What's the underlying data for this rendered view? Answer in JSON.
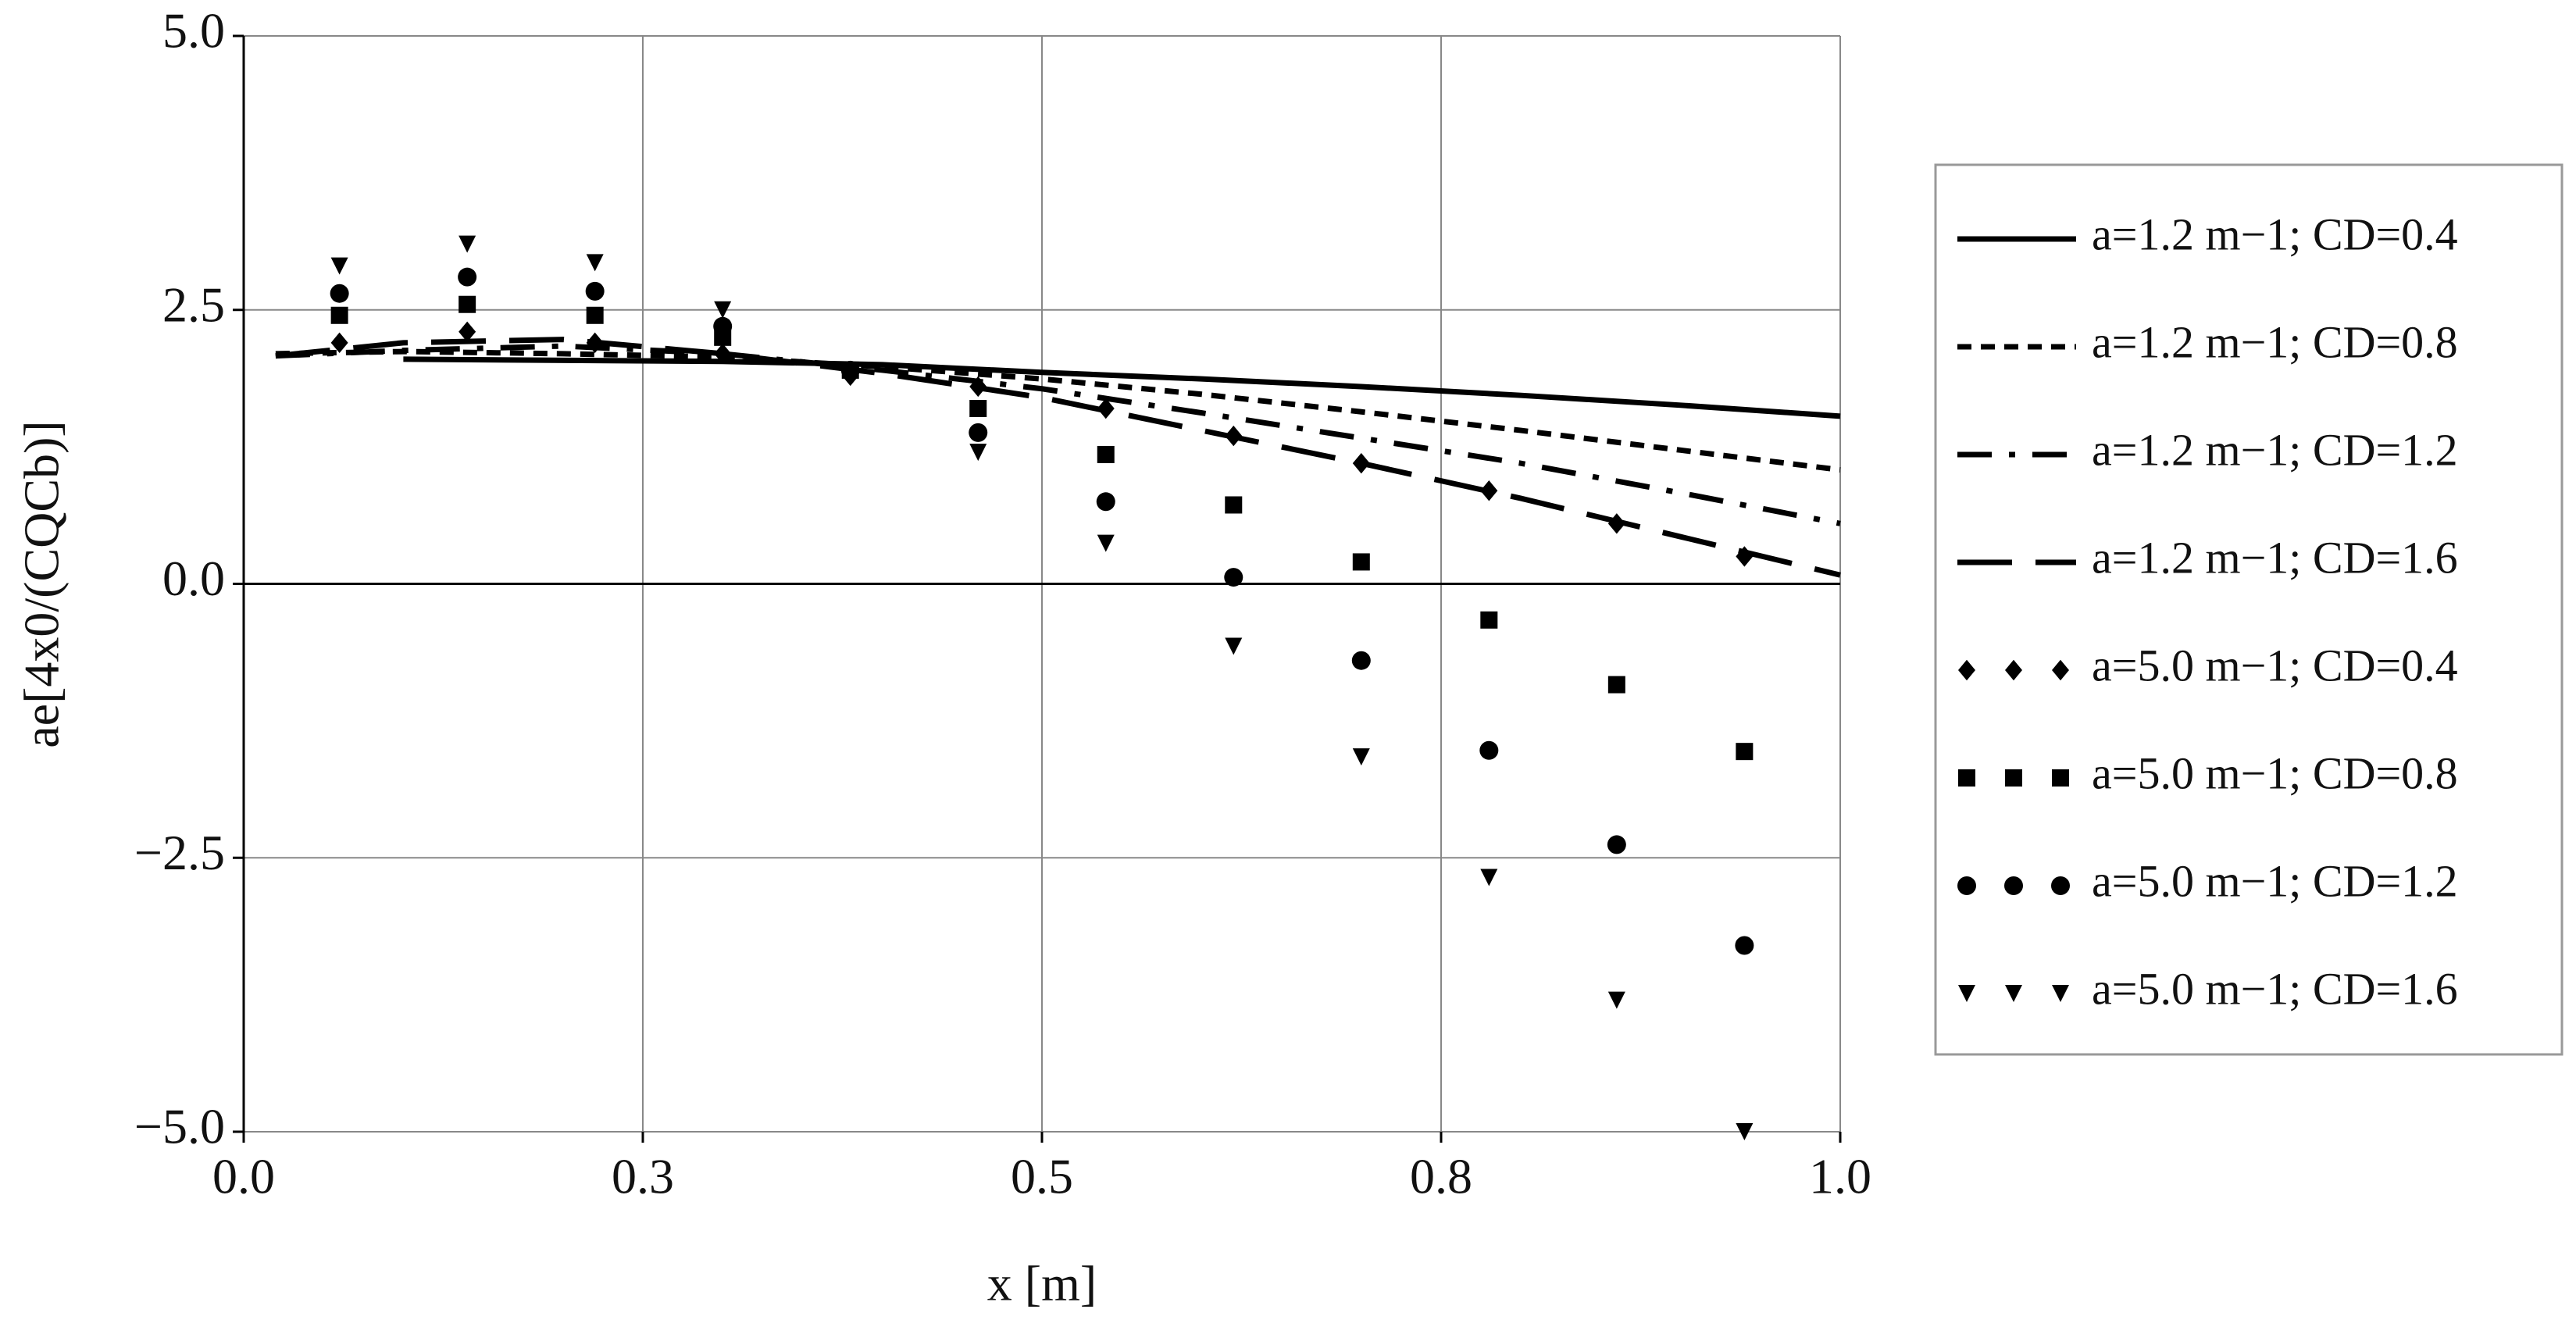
{
  "chart_data": {
    "type": "line",
    "x_label": "x [m]",
    "y_label": "ae[4x0/(CQCb)]",
    "xlim": [
      0,
      1
    ],
    "ylim": [
      -5,
      5
    ],
    "xticks": [
      {
        "value": 0,
        "label": "0.0"
      },
      {
        "value": 0.25,
        "label": "0.3"
      },
      {
        "value": 0.5,
        "label": "0.5"
      },
      {
        "value": 0.75,
        "label": "0.8"
      },
      {
        "value": 1,
        "label": "1.0"
      }
    ],
    "yticks": [
      {
        "value": -5,
        "label": "−5.0"
      },
      {
        "value": -2.5,
        "label": "−2.5"
      },
      {
        "value": 0,
        "label": "0.0"
      },
      {
        "value": 2.5,
        "label": "2.5"
      },
      {
        "value": 5,
        "label": "5.0"
      }
    ],
    "grid": true,
    "legend": "right",
    "series": [
      {
        "name": "a=1.2 m−1; CD=0.4",
        "color": "#000000",
        "mark": "line",
        "dash": "solid",
        "x": [
          0.1,
          0.3,
          0.4,
          0.5,
          0.6,
          0.7,
          0.8,
          0.9,
          1.0
        ],
        "values": [
          2.05,
          2.03,
          2.0,
          1.93,
          1.87,
          1.8,
          1.72,
          1.63,
          1.53
        ]
      },
      {
        "name": "a=1.2 m−1; CD=0.8",
        "color": "#000000",
        "mark": "line",
        "dash": "short-dash",
        "x": [
          0.02,
          0.1,
          0.2,
          0.3,
          0.4,
          0.5,
          0.6,
          0.7,
          0.8,
          0.9,
          1.0
        ],
        "values": [
          2.1,
          2.12,
          2.1,
          2.07,
          1.98,
          1.87,
          1.73,
          1.57,
          1.4,
          1.22,
          1.04
        ]
      },
      {
        "name": "a=1.2 m−1; CD=1.2",
        "color": "#000000",
        "mark": "line",
        "dash": "dash-dot",
        "x": [
          0.02,
          0.1,
          0.2,
          0.3,
          0.4,
          0.5,
          0.6,
          0.7,
          0.8,
          0.9,
          1.0
        ],
        "values": [
          2.08,
          2.13,
          2.17,
          2.1,
          1.95,
          1.78,
          1.56,
          1.33,
          1.1,
          0.83,
          0.55
        ]
      },
      {
        "name": "a=1.2 m−1; CD=1.6",
        "color": "#000000",
        "mark": "line",
        "dash": "long-dash",
        "x": [
          0.02,
          0.1,
          0.2,
          0.3,
          0.4,
          0.5,
          0.6,
          0.7,
          0.8,
          0.9,
          1.0
        ],
        "values": [
          2.08,
          2.2,
          2.23,
          2.1,
          1.92,
          1.7,
          1.4,
          1.1,
          0.78,
          0.43,
          0.08
        ]
      },
      {
        "name": "a=5.0 m−1; CD=0.4",
        "color": "#000000",
        "mark": "diamond",
        "x": [
          0.06,
          0.14,
          0.22,
          0.3,
          0.38,
          0.46,
          0.54,
          0.62,
          0.7,
          0.78,
          0.86,
          0.94
        ],
        "values": [
          2.2,
          2.3,
          2.2,
          2.1,
          1.9,
          1.8,
          1.6,
          1.35,
          1.1,
          0.85,
          0.55,
          0.25
        ]
      },
      {
        "name": "a=5.0 m−1; CD=0.8",
        "color": "#000000",
        "mark": "square",
        "x": [
          0.06,
          0.14,
          0.22,
          0.3,
          0.38,
          0.46,
          0.54,
          0.62,
          0.7,
          0.78,
          0.86,
          0.94
        ],
        "values": [
          2.45,
          2.55,
          2.45,
          2.25,
          1.95,
          1.6,
          1.18,
          0.72,
          0.2,
          -0.33,
          -0.92,
          -1.53
        ]
      },
      {
        "name": "a=5.0 m−1; CD=1.2",
        "color": "#000000",
        "mark": "circle",
        "x": [
          0.06,
          0.14,
          0.22,
          0.3,
          0.38,
          0.46,
          0.54,
          0.62,
          0.7,
          0.78,
          0.86,
          0.94
        ],
        "values": [
          2.65,
          2.8,
          2.67,
          2.35,
          1.95,
          1.38,
          0.75,
          0.06,
          -0.7,
          -1.52,
          -2.38,
          -3.3
        ]
      },
      {
        "name": "a=5.0 m−1; CD=1.6",
        "color": "#000000",
        "mark": "triangle",
        "x": [
          0.06,
          0.14,
          0.22,
          0.3,
          0.38,
          0.46,
          0.54,
          0.62,
          0.7,
          0.78,
          0.86,
          0.94
        ],
        "values": [
          2.9,
          3.1,
          2.93,
          2.5,
          1.92,
          1.2,
          0.37,
          -0.57,
          -1.58,
          -2.68,
          -3.8,
          -5.0
        ]
      }
    ]
  }
}
